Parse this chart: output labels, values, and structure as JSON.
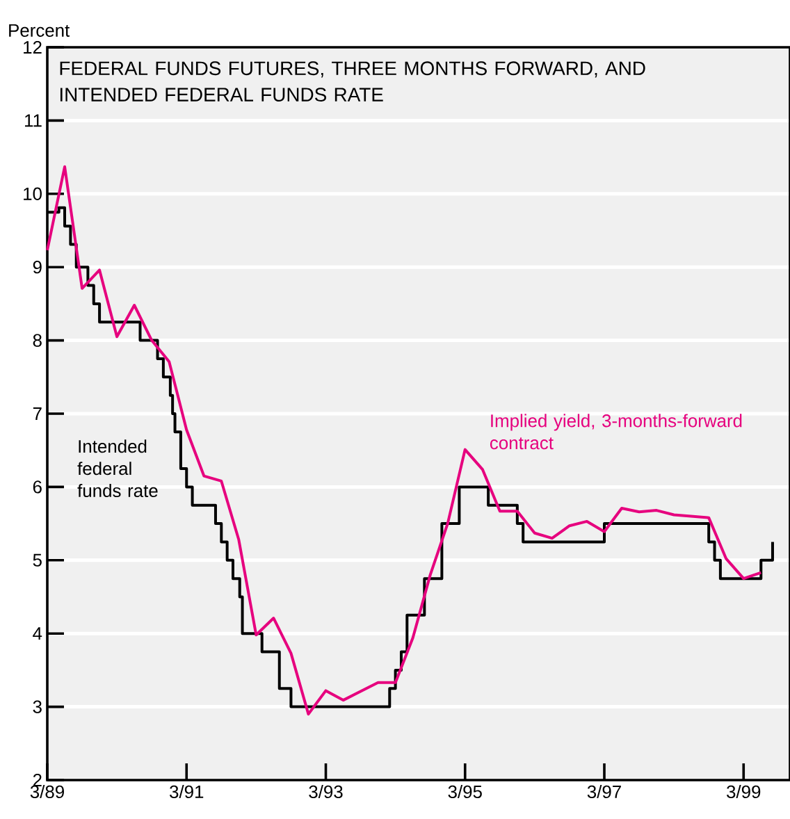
{
  "chart_data": {
    "type": "line",
    "title": "FEDERAL FUNDS FUTURES, THREE MONTHS FORWARD, AND INTENDED FEDERAL FUNDS RATE",
    "ylabel": "Percent",
    "xlim": [
      "1989-03",
      "1999-11"
    ],
    "xticks": [
      {
        "value": "1989-03",
        "label": "3/89"
      },
      {
        "value": "1991-03",
        "label": "3/91"
      },
      {
        "value": "1993-03",
        "label": "3/93"
      },
      {
        "value": "1995-03",
        "label": "3/95"
      },
      {
        "value": "1997-03",
        "label": "3/97"
      },
      {
        "value": "1999-03",
        "label": "3/99"
      }
    ],
    "ylim": [
      2,
      12
    ],
    "yticks": [
      2,
      3,
      4,
      5,
      6,
      7,
      8,
      9,
      10,
      11,
      12
    ],
    "grid": "y",
    "legend": false,
    "marker": "none",
    "line_style": "solid",
    "series": [
      {
        "name": "Intended federal funds rate",
        "type": "step",
        "color": "#000000",
        "x": [
          "1989-03",
          "1989-05",
          "1989-06",
          "1989-07",
          "1989-08",
          "1989-10",
          "1989-11",
          "1989-12",
          "1990-07",
          "1990-10",
          "1990-11",
          "1990-12-07",
          "1990-12-19",
          "1991-01",
          "1991-02",
          "1991-03",
          "1991-04",
          "1991-08",
          "1991-09",
          "1991-10",
          "1991-11",
          "1991-12-06",
          "1991-12-20",
          "1992-04",
          "1992-07",
          "1992-09",
          "1994-02",
          "1994-03",
          "1994-04",
          "1994-05",
          "1994-08",
          "1994-11",
          "1995-02",
          "1995-07",
          "1995-12",
          "1996-01",
          "1997-03",
          "1998-09",
          "1998-10",
          "1998-11",
          "1999-06",
          "1999-08"
        ],
        "values": [
          9.75,
          9.81,
          9.56,
          9.31,
          9.0,
          8.75,
          8.5,
          8.25,
          8.0,
          7.75,
          7.5,
          7.25,
          7.0,
          6.75,
          6.25,
          6.0,
          5.75,
          5.5,
          5.25,
          5.0,
          4.75,
          4.5,
          4.0,
          3.75,
          3.25,
          3.0,
          3.25,
          3.5,
          3.75,
          4.25,
          4.75,
          5.5,
          6.0,
          5.75,
          5.5,
          5.25,
          5.5,
          5.25,
          5.0,
          4.75,
          5.0,
          5.25
        ]
      },
      {
        "name": "Implied yield, 3-months-forward contract",
        "type": "line",
        "color": "#e6007e",
        "x": [
          "1989-03",
          "1989-06",
          "1989-09",
          "1989-12",
          "1990-03",
          "1990-06",
          "1990-09",
          "1990-12",
          "1991-03",
          "1991-06",
          "1991-09",
          "1991-12",
          "1992-03",
          "1992-06",
          "1992-09",
          "1992-12",
          "1993-03",
          "1993-06",
          "1993-12",
          "1994-03",
          "1994-06",
          "1994-09",
          "1994-12",
          "1995-03",
          "1995-06",
          "1995-09",
          "1995-12",
          "1996-03",
          "1996-06",
          "1996-09",
          "1996-12",
          "1997-03",
          "1997-06",
          "1997-09",
          "1997-12",
          "1998-03",
          "1998-09",
          "1998-12",
          "1999-03",
          "1999-06"
        ],
        "values": [
          9.23,
          10.37,
          8.71,
          8.96,
          8.05,
          8.48,
          8.0,
          7.71,
          6.78,
          6.15,
          6.08,
          5.28,
          3.98,
          4.21,
          3.73,
          2.9,
          3.22,
          3.09,
          3.33,
          3.33,
          3.94,
          4.8,
          5.5,
          6.51,
          6.24,
          5.67,
          5.67,
          5.37,
          5.3,
          5.47,
          5.53,
          5.39,
          5.71,
          5.66,
          5.68,
          5.62,
          5.58,
          5.02,
          4.75,
          4.83
        ]
      }
    ]
  }
}
